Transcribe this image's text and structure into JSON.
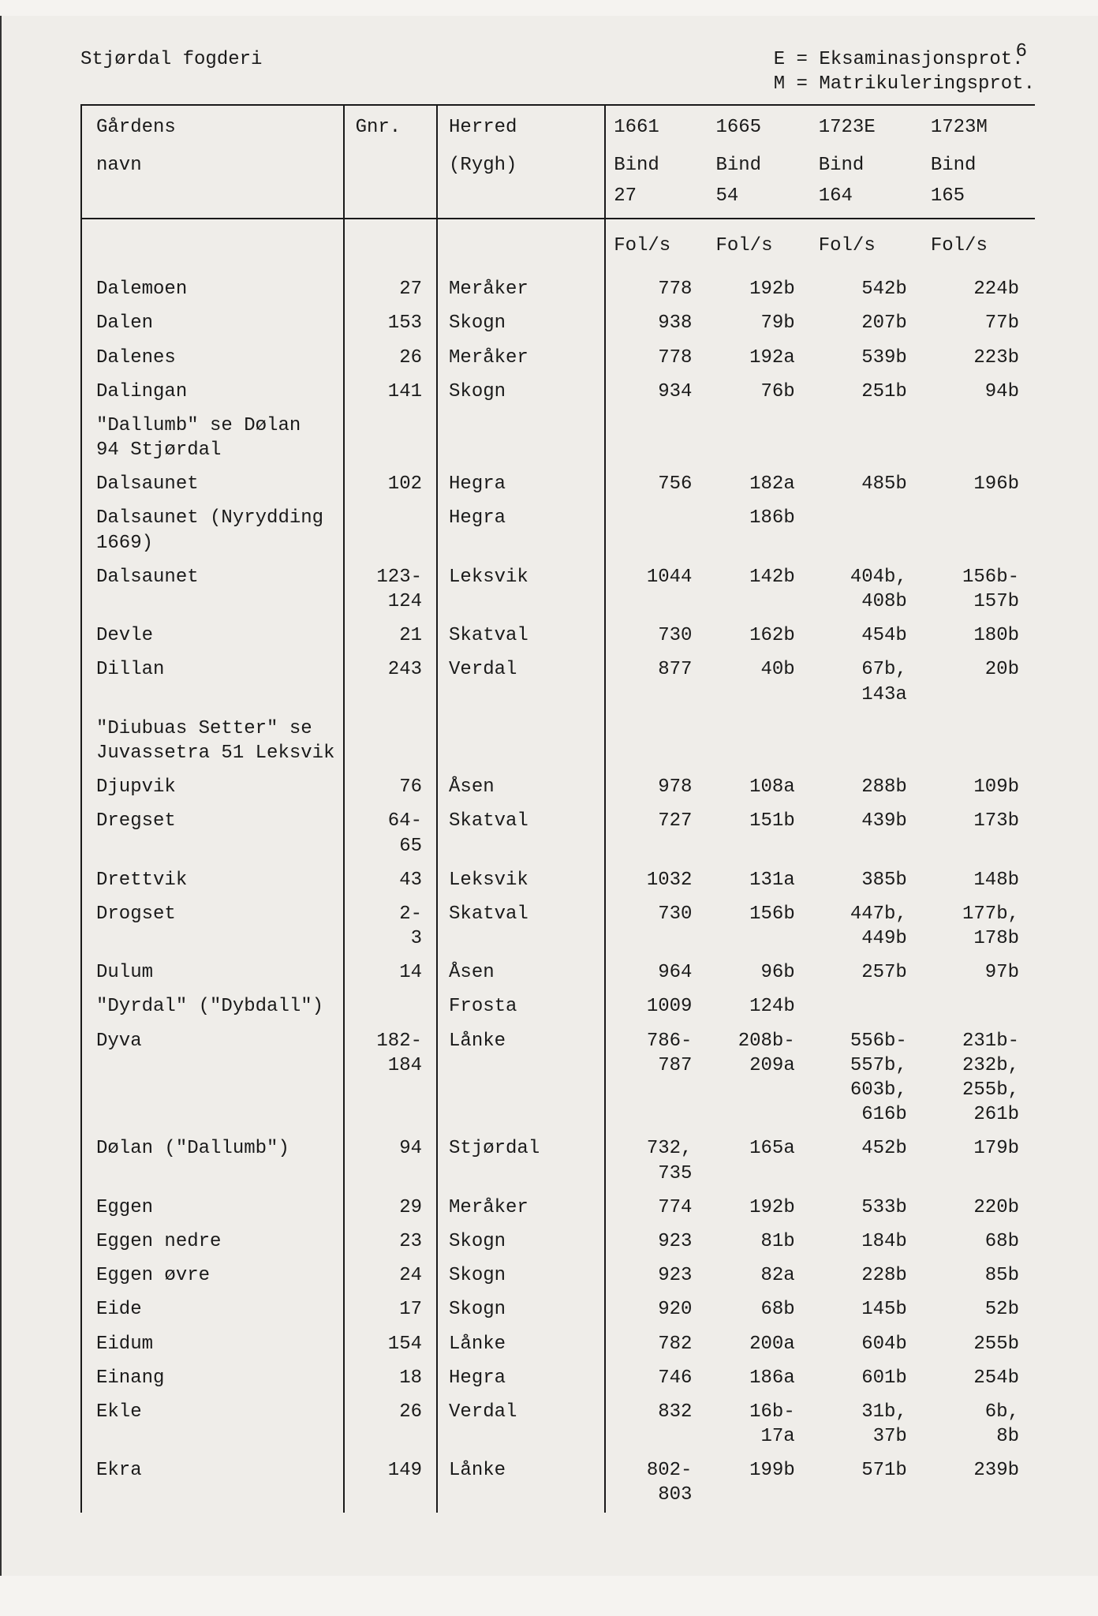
{
  "page_number": "6",
  "header": {
    "title": "Stjørdal fogderi",
    "legend_line1": "E = Eksaminasjonsprot.",
    "legend_line2": "M = Matrikuleringsprot."
  },
  "columns": {
    "navn": {
      "l1": "Gårdens",
      "l2": "navn",
      "l3": ""
    },
    "gnr": {
      "l1": "Gnr.",
      "l2": "",
      "l3": ""
    },
    "herred": {
      "l1": "Herred",
      "l2": "(Rygh)",
      "l3": ""
    },
    "c1661": {
      "l1": "1661",
      "l2": "Bind",
      "l3": "27"
    },
    "c1665": {
      "l1": "1665",
      "l2": "Bind",
      "l3": "54"
    },
    "c1723e": {
      "l1": "1723E",
      "l2": "Bind",
      "l3": "164"
    },
    "c1723m": {
      "l1": "1723M",
      "l2": "Bind",
      "l3": "165"
    }
  },
  "fols_label": "Fol/s",
  "rows": [
    {
      "navn": "Dalemoen",
      "gnr": "27",
      "herred": "Meråker",
      "c1661": "778",
      "c1665": "192b",
      "c1723e": "542b",
      "c1723m": "224b"
    },
    {
      "navn": "Dalen",
      "gnr": "153",
      "herred": "Skogn",
      "c1661": "938",
      "c1665": "79b",
      "c1723e": "207b",
      "c1723m": "77b"
    },
    {
      "navn": "Dalenes",
      "gnr": "26",
      "herred": "Meråker",
      "c1661": "778",
      "c1665": "192a",
      "c1723e": "539b",
      "c1723m": "223b"
    },
    {
      "navn": "Dalingan",
      "gnr": "141",
      "herred": "Skogn",
      "c1661": "934",
      "c1665": "76b",
      "c1723e": "251b",
      "c1723m": "94b"
    },
    {
      "navn": "\"Dallumb\" se Dølan\n94 Stjørdal",
      "gnr": "",
      "herred": "",
      "c1661": "",
      "c1665": "",
      "c1723e": "",
      "c1723m": ""
    },
    {
      "navn": "Dalsaunet",
      "gnr": "102",
      "herred": "Hegra",
      "c1661": "756",
      "c1665": "182a",
      "c1723e": "485b",
      "c1723m": "196b"
    },
    {
      "navn": "Dalsaunet (Nyrydding\n1669)",
      "gnr": "",
      "herred": "Hegra",
      "c1661": "",
      "c1665": "186b",
      "c1723e": "",
      "c1723m": ""
    },
    {
      "navn": "Dalsaunet",
      "gnr": "123-\n124",
      "herred": "Leksvik",
      "c1661": "1044",
      "c1665": "142b",
      "c1723e": "404b,\n408b",
      "c1723m": "156b-\n157b"
    },
    {
      "navn": "Devle",
      "gnr": "21",
      "herred": "Skatval",
      "c1661": "730",
      "c1665": "162b",
      "c1723e": "454b",
      "c1723m": "180b"
    },
    {
      "navn": "Dillan",
      "gnr": "243",
      "herred": "Verdal",
      "c1661": "877",
      "c1665": "40b",
      "c1723e": "67b,\n143a",
      "c1723m": "20b"
    },
    {
      "navn": "\"Diubuas Setter\" se\nJuvassetra 51 Leksvik",
      "gnr": "",
      "herred": "",
      "c1661": "",
      "c1665": "",
      "c1723e": "",
      "c1723m": ""
    },
    {
      "navn": "Djupvik",
      "gnr": "76",
      "herred": "Åsen",
      "c1661": "978",
      "c1665": "108a",
      "c1723e": "288b",
      "c1723m": "109b"
    },
    {
      "navn": "Dregset",
      "gnr": "64-\n65",
      "herred": "Skatval",
      "c1661": "727",
      "c1665": "151b",
      "c1723e": "439b",
      "c1723m": "173b"
    },
    {
      "navn": "Drettvik",
      "gnr": "43",
      "herred": "Leksvik",
      "c1661": "1032",
      "c1665": "131a",
      "c1723e": "385b",
      "c1723m": "148b"
    },
    {
      "navn": "Drogset",
      "gnr": "2-\n3",
      "herred": "Skatval",
      "c1661": "730",
      "c1665": "156b",
      "c1723e": "447b,\n449b",
      "c1723m": "177b,\n178b"
    },
    {
      "navn": "Dulum",
      "gnr": "14",
      "herred": "Åsen",
      "c1661": "964",
      "c1665": "96b",
      "c1723e": "257b",
      "c1723m": "97b"
    },
    {
      "navn": "\"Dyrdal\" (\"Dybdall\")",
      "gnr": "",
      "herred": "Frosta",
      "c1661": "1009",
      "c1665": "124b",
      "c1723e": "",
      "c1723m": ""
    },
    {
      "navn": "Dyva",
      "gnr": "182-\n184",
      "herred": "Lånke",
      "c1661": "786-\n787",
      "c1665": "208b-\n209a",
      "c1723e": "556b-\n557b,\n603b,\n616b",
      "c1723m": "231b-\n232b,\n255b,\n261b"
    },
    {
      "navn": "Dølan (\"Dallumb\")",
      "gnr": "94",
      "herred": "Stjørdal",
      "c1661": "732,\n735",
      "c1665": "165a",
      "c1723e": "452b",
      "c1723m": "179b"
    },
    {
      "navn": "Eggen",
      "gnr": "29",
      "herred": "Meråker",
      "c1661": "774",
      "c1665": "192b",
      "c1723e": "533b",
      "c1723m": "220b"
    },
    {
      "navn": "Eggen nedre",
      "gnr": "23",
      "herred": "Skogn",
      "c1661": "923",
      "c1665": "81b",
      "c1723e": "184b",
      "c1723m": "68b"
    },
    {
      "navn": "Eggen øvre",
      "gnr": "24",
      "herred": "Skogn",
      "c1661": "923",
      "c1665": "82a",
      "c1723e": "228b",
      "c1723m": "85b"
    },
    {
      "navn": "Eide",
      "gnr": "17",
      "herred": "Skogn",
      "c1661": "920",
      "c1665": "68b",
      "c1723e": "145b",
      "c1723m": "52b"
    },
    {
      "navn": "Eidum",
      "gnr": "154",
      "herred": "Lånke",
      "c1661": "782",
      "c1665": "200a",
      "c1723e": "604b",
      "c1723m": "255b"
    },
    {
      "navn": "Einang",
      "gnr": "18",
      "herred": "Hegra",
      "c1661": "746",
      "c1665": "186a",
      "c1723e": "601b",
      "c1723m": "254b"
    },
    {
      "navn": "Ekle",
      "gnr": "26",
      "herred": "Verdal",
      "c1661": "832",
      "c1665": "16b-\n17a",
      "c1723e": "31b,\n37b",
      "c1723m": "6b,\n8b"
    },
    {
      "navn": "Ekra",
      "gnr": "149",
      "herred": "Lånke",
      "c1661": "802-\n803",
      "c1665": "199b",
      "c1723e": "571b",
      "c1723m": "239b"
    }
  ]
}
